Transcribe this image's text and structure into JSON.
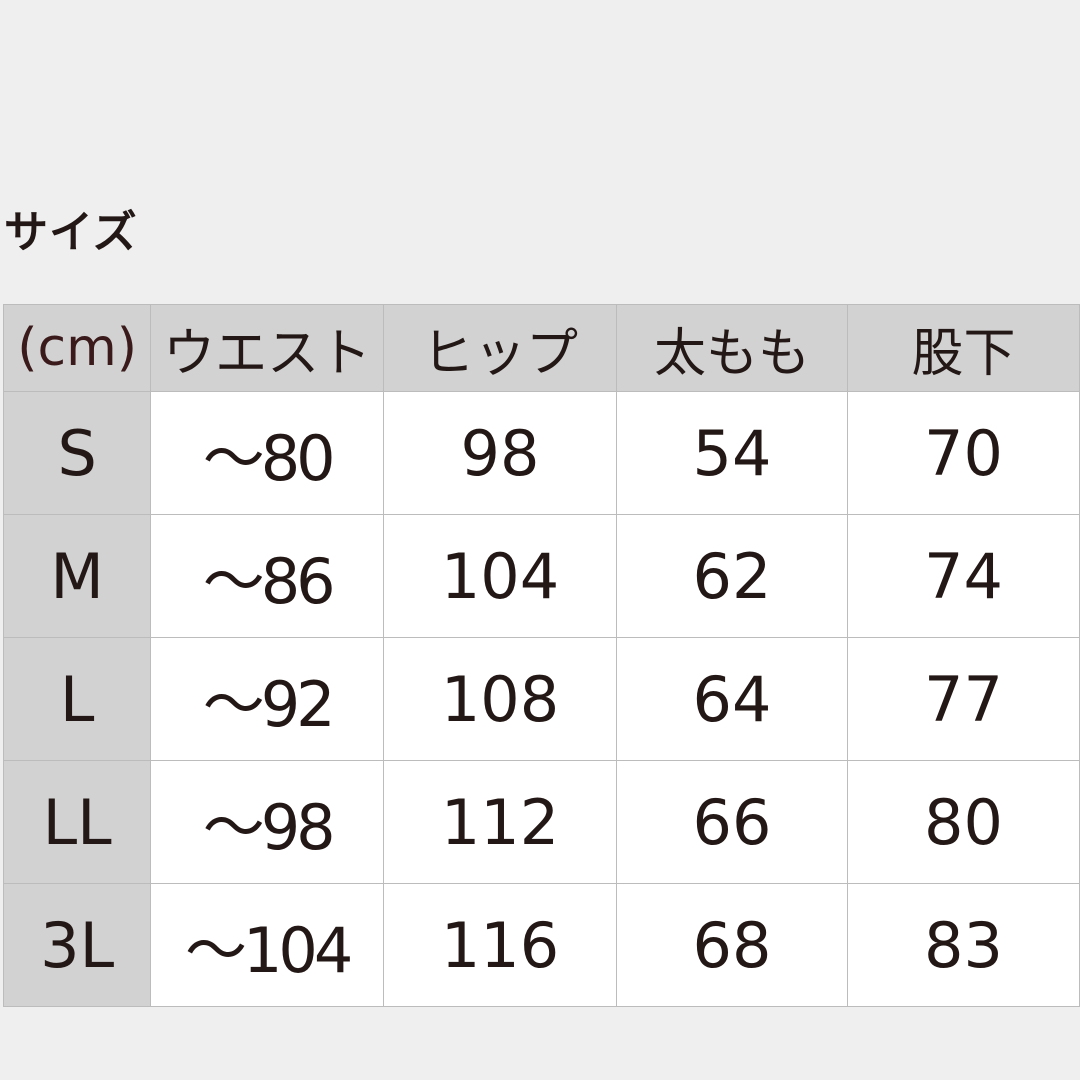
{
  "title": "サイズ",
  "table": {
    "unit": "(cm)",
    "headers": [
      "ウエスト",
      "ヒップ",
      "太もも",
      "股下"
    ],
    "rows": [
      {
        "size": "S",
        "values": [
          "〜80",
          "98",
          "54",
          "70"
        ]
      },
      {
        "size": "M",
        "values": [
          "〜86",
          "104",
          "62",
          "74"
        ]
      },
      {
        "size": "L",
        "values": [
          "〜92",
          "108",
          "64",
          "77"
        ]
      },
      {
        "size": "LL",
        "values": [
          "〜98",
          "112",
          "66",
          "80"
        ]
      },
      {
        "size": "3L",
        "values": [
          "〜104",
          "116",
          "68",
          "83"
        ]
      }
    ]
  },
  "colors": {
    "header_bg": "#d2d2d2",
    "cell_bg": "#ffffff",
    "border": "#bcbcbc",
    "page_bg": "#efefef"
  }
}
